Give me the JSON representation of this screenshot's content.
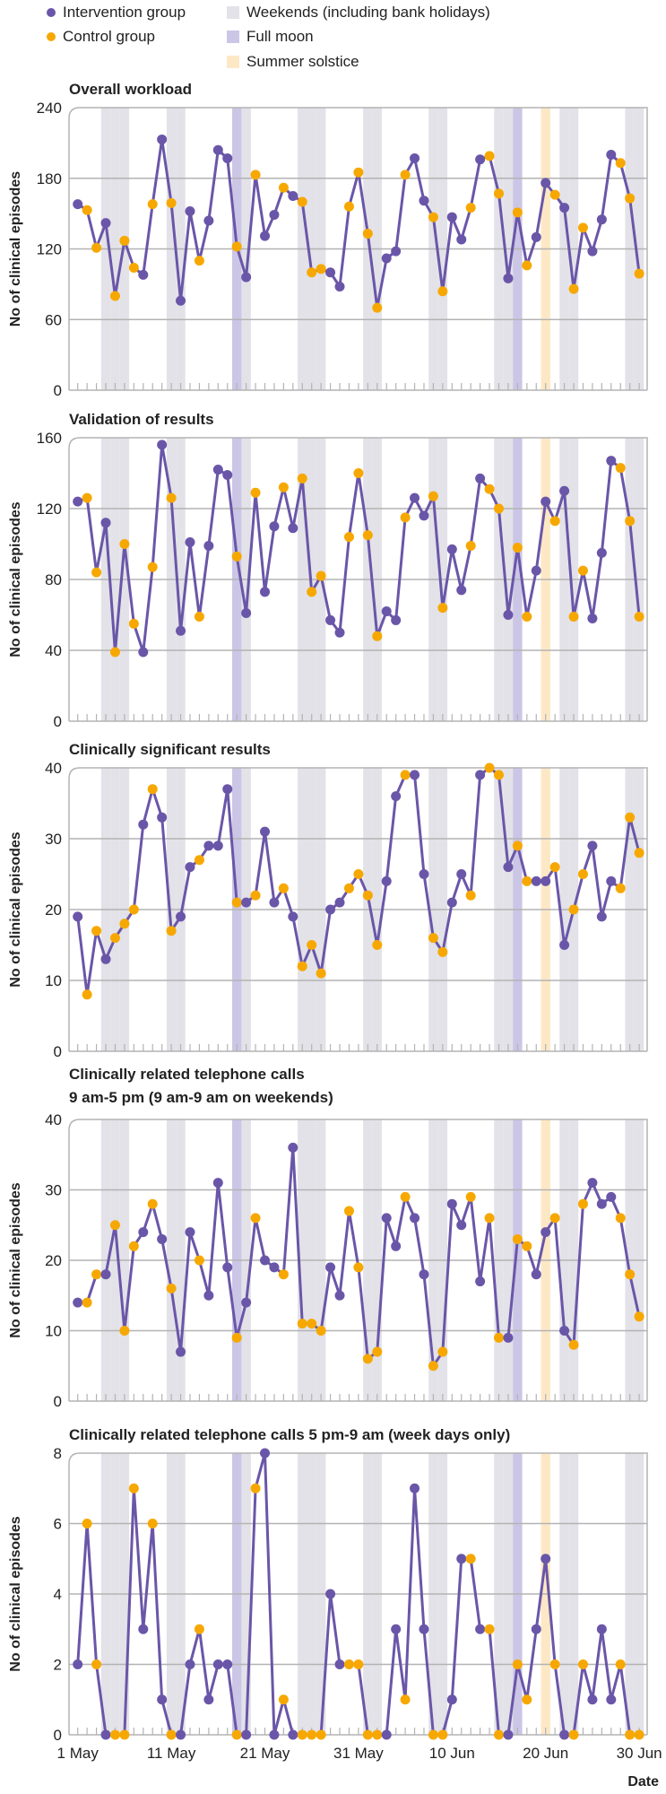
{
  "legend": {
    "intervention": "Intervention group",
    "control": "Control group",
    "weekends": "Weekends (including bank holidays)",
    "full_moon": "Full moon",
    "solstice": "Summer solstice"
  },
  "colors": {
    "intervention": "#6a56a8",
    "control": "#f7a800",
    "weekend": "#e2e2e8",
    "full_moon": "#cbc6e6",
    "solstice": "#fde8c6",
    "grid": "#b3b3b3"
  },
  "chart_data": {
    "type": "line",
    "x_start": "1 May",
    "x_end": "30 Jun",
    "xlabel": "Date",
    "x_tick_labels": [
      {
        "index": 0,
        "label": "1 May"
      },
      {
        "index": 10,
        "label": "11 May"
      },
      {
        "index": 20,
        "label": "21 May"
      },
      {
        "index": 30,
        "label": "31 May"
      },
      {
        "index": 40,
        "label": "10 Jun"
      },
      {
        "index": 50,
        "label": "20 Jun"
      },
      {
        "index": 60,
        "label": "30 Jun"
      }
    ],
    "ylabel": "No of clinical episodes",
    "group_by_day": [
      "I",
      "C",
      "C",
      "I",
      "C",
      "C",
      "C",
      "I",
      "C",
      "I",
      "C",
      "I",
      "I",
      "C",
      "I",
      "I",
      "I",
      "C",
      "I",
      "C",
      "I",
      "I",
      "C",
      "I",
      "C",
      "C",
      "C",
      "I",
      "I",
      "C",
      "C",
      "C",
      "C",
      "I",
      "I",
      "C",
      "I",
      "I",
      "C",
      "C",
      "I",
      "I",
      "C",
      "I",
      "C",
      "C",
      "I",
      "C",
      "C",
      "I",
      "I",
      "C",
      "I",
      "C",
      "C",
      "I",
      "I",
      "I",
      "C",
      "C",
      "C"
    ],
    "weekend_days": [
      3,
      4,
      5,
      10,
      11,
      18,
      24,
      25,
      26,
      31,
      32,
      38,
      39,
      45,
      46,
      52,
      53,
      59,
      60
    ],
    "full_moon_days": [
      17,
      47
    ],
    "solstice_days": [
      50
    ],
    "panels": [
      {
        "title": "Overall workload",
        "title2": "",
        "ylim": [
          0,
          240
        ],
        "yticks": [
          0,
          60,
          120,
          180,
          240
        ],
        "values": [
          158,
          153,
          121,
          142,
          80,
          127,
          104,
          98,
          158,
          213,
          159,
          76,
          152,
          110,
          144,
          204,
          197,
          122,
          96,
          183,
          131,
          149,
          172,
          165,
          160,
          100,
          103,
          100,
          88,
          156,
          185,
          133,
          70,
          112,
          118,
          183,
          197,
          161,
          147,
          84,
          147,
          128,
          155,
          196,
          199,
          167,
          95,
          151,
          106,
          130,
          176,
          166,
          155,
          86,
          138,
          118,
          145,
          200,
          193,
          163,
          99
        ]
      },
      {
        "title": "Validation of results",
        "title2": "",
        "ylim": [
          0,
          160
        ],
        "yticks": [
          0,
          40,
          80,
          120,
          160
        ],
        "values": [
          124,
          126,
          84,
          112,
          39,
          100,
          55,
          39,
          87,
          156,
          126,
          51,
          101,
          59,
          99,
          142,
          139,
          93,
          61,
          129,
          73,
          110,
          132,
          109,
          137,
          73,
          82,
          57,
          50,
          104,
          140,
          105,
          48,
          62,
          57,
          115,
          126,
          116,
          127,
          64,
          97,
          74,
          99,
          137,
          131,
          120,
          60,
          98,
          59,
          85,
          124,
          113,
          130,
          59,
          85,
          58,
          95,
          147,
          143,
          113,
          59
        ]
      },
      {
        "title": "Clinically significant results",
        "title2": "",
        "ylim": [
          0,
          40
        ],
        "yticks": [
          0,
          10,
          20,
          30,
          40
        ],
        "values": [
          19,
          8,
          17,
          13,
          16,
          18,
          20,
          32,
          37,
          33,
          17,
          19,
          26,
          27,
          29,
          29,
          37,
          21,
          21,
          22,
          31,
          21,
          23,
          19,
          12,
          15,
          11,
          20,
          21,
          23,
          25,
          22,
          15,
          24,
          36,
          39,
          39,
          25,
          16,
          14,
          21,
          25,
          22,
          39,
          40,
          39,
          26,
          29,
          24,
          24,
          24,
          26,
          15,
          20,
          25,
          29,
          19,
          24,
          23,
          33,
          28
        ]
      },
      {
        "title": "Clinically related telephone calls",
        "title2": "9 am-5 pm (9 am-9 am on weekends)",
        "ylim": [
          0,
          40
        ],
        "yticks": [
          0,
          10,
          20,
          30,
          40
        ],
        "values": [
          14,
          14,
          18,
          18,
          25,
          10,
          22,
          24,
          28,
          23,
          16,
          7,
          24,
          20,
          15,
          31,
          19,
          9,
          14,
          26,
          20,
          19,
          18,
          36,
          11,
          11,
          10,
          19,
          15,
          27,
          19,
          6,
          7,
          26,
          22,
          29,
          26,
          18,
          5,
          7,
          28,
          25,
          29,
          17,
          26,
          9,
          9,
          23,
          22,
          18,
          24,
          26,
          10,
          8,
          28,
          31,
          28,
          29,
          26,
          18,
          12
        ]
      },
      {
        "title": "Clinically related telephone calls 5 pm-9 am (week days only)",
        "title2": "",
        "ylim": [
          0,
          8
        ],
        "yticks": [
          0,
          2,
          4,
          6,
          8
        ],
        "values": [
          2,
          6,
          2,
          0,
          0,
          0,
          7,
          3,
          6,
          1,
          0,
          0,
          2,
          3,
          1,
          2,
          2,
          0,
          0,
          7,
          8,
          0,
          1,
          0,
          0,
          0,
          0,
          4,
          2,
          2,
          2,
          0,
          0,
          0,
          3,
          1,
          7,
          3,
          0,
          0,
          1,
          5,
          5,
          3,
          3,
          0,
          0,
          2,
          1,
          3,
          5,
          2,
          0,
          0,
          2,
          1,
          3,
          1,
          2,
          0,
          0
        ]
      }
    ]
  }
}
